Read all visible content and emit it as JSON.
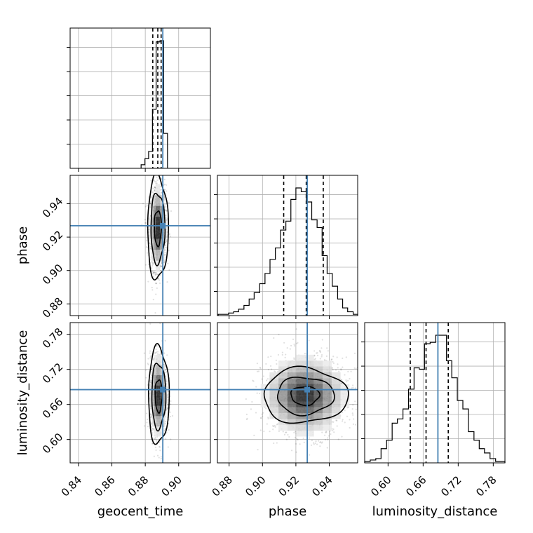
{
  "chart_data": {
    "type": "corner",
    "parameters": [
      "geocent_time",
      "phase",
      "luminosity_distance"
    ],
    "labels": {
      "geocent_time": "geocent_time",
      "phase": "phase",
      "luminosity_distance": "luminosity_distance"
    },
    "ranges": {
      "geocent_time": [
        0.835,
        0.919
      ],
      "phase": [
        0.873,
        0.957
      ],
      "luminosity_distance": [
        0.56,
        0.8
      ]
    },
    "ticks": {
      "geocent_time": [
        "0.84",
        "0.86",
        "0.88",
        "0.90"
      ],
      "phase": [
        "0.88",
        "0.90",
        "0.92",
        "0.94"
      ],
      "luminosity_distance": [
        "0.60",
        "0.66",
        "0.72",
        "0.78"
      ]
    },
    "truths": {
      "geocent_time": 0.8905,
      "phase": 0.9268,
      "luminosity_distance": 0.6853
    },
    "truth_color": "#4682b4",
    "quantiles": {
      "geocent_time": [
        0.8845,
        0.8875,
        0.8895
      ],
      "phase": [
        0.9127,
        0.9262,
        0.9364
      ],
      "luminosity_distance": [
        0.638,
        0.665,
        0.703
      ]
    },
    "grid": true,
    "histograms": {
      "geocent_time": {
        "bin_edges": [
          0.8775,
          0.8798,
          0.882,
          0.8843,
          0.8865,
          0.8888,
          0.891,
          0.8933
        ],
        "counts": [
          3,
          8,
          14,
          49,
          105,
          106,
          29
        ]
      },
      "phase": {
        "bin_edges": [
          0.8735,
          0.8765,
          0.8797,
          0.8827,
          0.8857,
          0.8889,
          0.892,
          0.895,
          0.8983,
          0.9015,
          0.9045,
          0.9077,
          0.9108,
          0.914,
          0.917,
          0.92,
          0.9232,
          0.9262,
          0.9295,
          0.9327,
          0.9357,
          0.9387,
          0.9418,
          0.945,
          0.948,
          0.951,
          0.9543,
          0.957
        ],
        "counts": [
          1,
          1,
          2,
          3,
          5,
          8,
          13,
          18,
          25,
          33,
          44,
          53,
          67,
          74,
          91,
          100,
          97,
          89,
          75,
          69,
          47,
          33,
          23,
          13,
          6,
          3,
          1
        ]
      },
      "luminosity_distance": {
        "bin_edges": [
          0.56,
          0.5695,
          0.579,
          0.588,
          0.5975,
          0.607,
          0.616,
          0.6255,
          0.635,
          0.6445,
          0.6535,
          0.6625,
          0.672,
          0.6815,
          0.691,
          0.7,
          0.709,
          0.7185,
          0.728,
          0.7375,
          0.747,
          0.756,
          0.765,
          0.7745,
          0.784,
          0.7935,
          0.8
        ],
        "counts": [
          1,
          2,
          3,
          10,
          16,
          28,
          31,
          38,
          52,
          67,
          66,
          84,
          85,
          90,
          90,
          72,
          60,
          44,
          38,
          22,
          16,
          10,
          7,
          3,
          1,
          1
        ]
      }
    },
    "scatter": [
      {
        "x": "geocent_time",
        "y": "phase",
        "center": [
          0.8875,
          0.9255
        ],
        "spread": [
          0.0022,
          0.011
        ],
        "contours": [
          {
            "sx": 0.0021,
            "sy": 0.0105
          },
          {
            "sx": 0.0042,
            "sy": 0.021
          },
          {
            "sx": 0.0062,
            "sy": 0.031
          }
        ]
      },
      {
        "x": "geocent_time",
        "y": "luminosity_distance",
        "center": [
          0.888,
          0.675
        ],
        "spread": [
          0.0022,
          0.03
        ],
        "contours": [
          {
            "sx": 0.0021,
            "sy": 0.028
          },
          {
            "sx": 0.0042,
            "sy": 0.056
          },
          {
            "sx": 0.0062,
            "sy": 0.083
          }
        ]
      },
      {
        "x": "phase",
        "y": "luminosity_distance",
        "center": [
          0.9255,
          0.675
        ],
        "spread": [
          0.011,
          0.03
        ],
        "contours": [
          {
            "sx": 0.0085,
            "sy": 0.016
          },
          {
            "sx": 0.017,
            "sy": 0.032
          },
          {
            "sx": 0.0252,
            "sy": 0.047
          }
        ]
      }
    ]
  }
}
